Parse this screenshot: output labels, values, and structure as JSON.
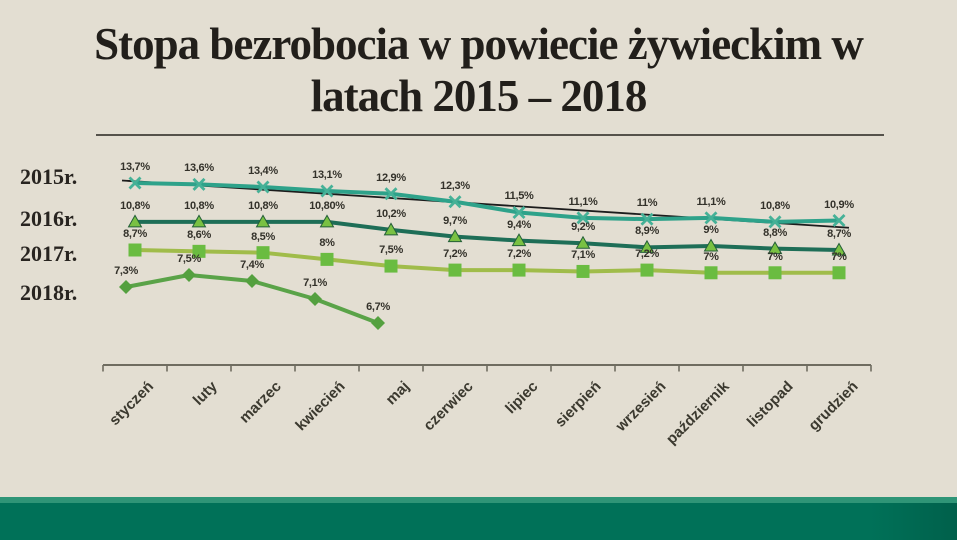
{
  "chart_data": {
    "type": "line",
    "title": "Stopa bezrobocia w powiecie żywieckim w latach 2015 – 2018",
    "xlabel": "",
    "ylabel": "",
    "grid": false,
    "y_axis_visible": false,
    "legend_position": "left",
    "categories": [
      "styczeń",
      "luty",
      "marzec",
      "kwiecień",
      "maj",
      "czerwiec",
      "lipiec",
      "sierpień",
      "wrzesień",
      "październik",
      "listopad",
      "grudzień"
    ],
    "series": [
      {
        "name": "2015r.",
        "marker": "x",
        "color": "#2ea28a",
        "marker_color": "#45b197",
        "values": [
          13.7,
          13.6,
          13.4,
          13.1,
          12.9,
          12.3,
          11.5,
          11.1,
          11.0,
          11.1,
          10.8,
          10.9
        ],
        "labels": [
          "13,7%",
          "13,6%",
          "13,4%",
          "13,1%",
          "12,9%",
          "12,3%",
          "11,5%",
          "11,1%",
          "11%",
          "11,1%",
          "10,8%",
          "10,9%"
        ]
      },
      {
        "name": "2016r.",
        "marker": "triangle",
        "color": "#1e6e57",
        "marker_color": "#79c143",
        "marker_outline": "#235e38",
        "values": [
          10.8,
          10.8,
          10.8,
          10.8,
          10.2,
          9.7,
          9.4,
          9.2,
          8.9,
          9.0,
          8.8,
          8.7
        ],
        "labels": [
          "10,8%",
          "10,8%",
          "10,8%",
          "10,80%",
          "10,2%",
          "9,7%",
          "9,4%",
          "9,2%",
          "8,9%",
          "9%",
          "8,8%",
          "8,7%"
        ]
      },
      {
        "name": "2017r.",
        "marker": "square",
        "color": "#a0bc4a",
        "marker_color": "#6abc41",
        "values": [
          8.7,
          8.6,
          8.5,
          8.0,
          7.5,
          7.2,
          7.2,
          7.1,
          7.2,
          7.0,
          7.0,
          7.0
        ],
        "labels": [
          "8,7%",
          "8,6%",
          "8,5%",
          "8%",
          "7,5%",
          "7,2%",
          "7,2%",
          "7,1%",
          "7,2%",
          "7%",
          "7%",
          "7%"
        ]
      },
      {
        "name": "2018r.",
        "marker": "diamond",
        "color": "#5aa348",
        "marker_color": "#54a03f",
        "values": [
          7.3,
          7.5,
          7.4,
          7.1,
          6.7
        ],
        "labels": [
          "7,3%",
          "7,5%",
          "7,4%",
          "7,1%",
          "6,7%"
        ]
      }
    ],
    "trendline": {
      "series": "2015r.",
      "type": "linear",
      "color": "#1c1c1c"
    }
  },
  "theme": {
    "background": "#e3ded2",
    "footer_bar": "#007158",
    "footer_bar_highlight": "#2f9577",
    "axis_color": "#6f6c60",
    "title_color": "#221f1b"
  }
}
